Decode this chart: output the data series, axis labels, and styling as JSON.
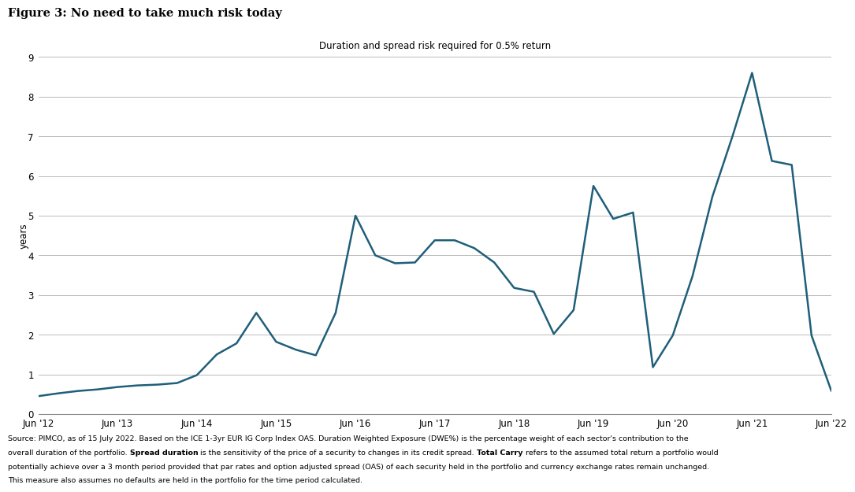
{
  "title": "Figure 3: No need to take much risk today",
  "subtitle": "Duration and spread risk required for 0.5% return",
  "ylabel": "years",
  "line_color": "#1f5f7a",
  "background_color": "#ffffff",
  "ylim": [
    0,
    9
  ],
  "yticks": [
    0,
    1,
    2,
    3,
    4,
    5,
    6,
    7,
    8,
    9
  ],
  "values": [
    0.45,
    0.52,
    0.58,
    0.62,
    0.68,
    0.72,
    0.74,
    0.78,
    0.98,
    1.5,
    1.78,
    2.55,
    1.82,
    1.62,
    1.48,
    2.55,
    5.0,
    4.0,
    3.8,
    3.82,
    4.38,
    4.38,
    4.18,
    3.82,
    3.18,
    3.08,
    2.02,
    2.62,
    5.75,
    4.92,
    5.08,
    1.18,
    1.98,
    3.48,
    5.48,
    6.98,
    8.6,
    6.38,
    6.28,
    1.98,
    0.58
  ],
  "xtick_labels": [
    "Jun '12",
    "Jun '13",
    "Jun '14",
    "Jun '15",
    "Jun '16",
    "Jun '17",
    "Jun '18",
    "Jun '19",
    "Jun '20",
    "Jun '21",
    "Jun '22"
  ],
  "xtick_positions": [
    0,
    4,
    8,
    12,
    16,
    20,
    24,
    28,
    32,
    36,
    40
  ],
  "source_lines": [
    "Source: PIMCO, as of 15 July 2022. Based on the ICE 1-3yr EUR IG Corp Index OAS. Duration Weighted Exposure (DWE%) is the percentage weight of each sector's contribution to the",
    "overall duration of the portfolio. {b}Spread duration{/b} is the sensitivity of the price of a security to changes in its credit spread. {b}Total Carry{/b} refers to the assumed total return a portfolio would",
    "potentially achieve over a 3 month period provided that par rates and option adjusted spread (OAS) of each security held in the portfolio and currency exchange rates remain unchanged.",
    "This measure also assumes no defaults are held in the portfolio for the time period calculated."
  ]
}
